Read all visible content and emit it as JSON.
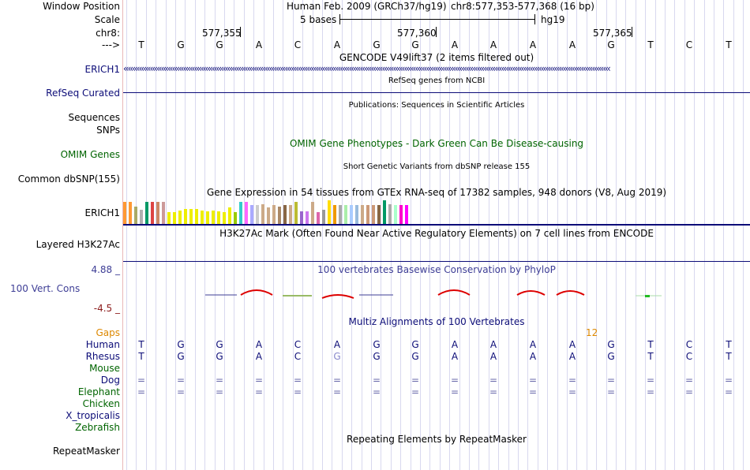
{
  "header": {
    "window_position_label": "Window Position",
    "scale_label": "Scale",
    "chr_label": "chr8:",
    "arrow_label": "--->",
    "assembly": "Human Feb. 2009 (GRCh37/hg19)",
    "position": "chr8:577,353-577,368 (16 bp)",
    "scale_text": "5 bases",
    "db": "hg19",
    "ticks": [
      "577,355",
      "577,360",
      "577,365"
    ]
  },
  "sequence": [
    "T",
    "G",
    "G",
    "A",
    "C",
    "A",
    "G",
    "G",
    "A",
    "A",
    "A",
    "A",
    "G",
    "T",
    "C",
    "T"
  ],
  "tracks": {
    "gencode": {
      "title": "GENCODE V49lift37 (2 items filtered out)",
      "label": "ERICH1",
      "color": "#0c0c78"
    },
    "refseq": {
      "title": "RefSeq genes from NCBI",
      "label": "RefSeq Curated",
      "color": "#0c0c78"
    },
    "publications": {
      "title": "Publications: Sequences in Scientific Articles",
      "label1": "Sequences",
      "label2": "SNPs"
    },
    "omim": {
      "title": "OMIM Gene Phenotypes - Dark Green Can Be Disease-causing",
      "label": "OMIM Genes",
      "color": "#006400"
    },
    "dbsnp": {
      "title": "Short Genetic Variants from dbSNP release 155",
      "label": "Common dbSNP(155)"
    },
    "gtex": {
      "title": "Gene Expression in 54 tissues from GTEx RNA-seq of 17382 samples, 948 donors (V8, Aug 2019)",
      "label": "ERICH1",
      "bars": [
        {
          "value": 0.93,
          "color": "#ff9933"
        },
        {
          "value": 0.93,
          "color": "#ff9933"
        },
        {
          "value": 0.73,
          "color": "#aaaa66"
        },
        {
          "value": 0.6,
          "color": "#b0b0b0"
        },
        {
          "value": 0.93,
          "color": "#009966"
        },
        {
          "value": 0.93,
          "color": "#dd4444"
        },
        {
          "value": 0.93,
          "color": "#cc8866"
        },
        {
          "value": 0.93,
          "color": "#cc9999"
        },
        {
          "value": 0.5,
          "color": "#eeee00"
        },
        {
          "value": 0.5,
          "color": "#eeee00"
        },
        {
          "value": 0.57,
          "color": "#eeee00"
        },
        {
          "value": 0.63,
          "color": "#eeee00"
        },
        {
          "value": 0.63,
          "color": "#eeee00"
        },
        {
          "value": 0.63,
          "color": "#eeee00"
        },
        {
          "value": 0.57,
          "color": "#eeee00"
        },
        {
          "value": 0.53,
          "color": "#eeee00"
        },
        {
          "value": 0.57,
          "color": "#eeee00"
        },
        {
          "value": 0.53,
          "color": "#eeee00"
        },
        {
          "value": 0.5,
          "color": "#eeee00"
        },
        {
          "value": 0.7,
          "color": "#eeee00"
        },
        {
          "value": 0.5,
          "color": "#99cc00"
        },
        {
          "value": 0.93,
          "color": "#33cccc"
        },
        {
          "value": 0.93,
          "color": "#ff66ff"
        },
        {
          "value": 0.8,
          "color": "#aaaaff"
        },
        {
          "value": 0.8,
          "color": "#cccccc"
        },
        {
          "value": 0.83,
          "color": "#ccaa88"
        },
        {
          "value": 0.7,
          "color": "#ccaa88"
        },
        {
          "value": 0.8,
          "color": "#ccaa88"
        },
        {
          "value": 0.73,
          "color": "#aa8866"
        },
        {
          "value": 0.8,
          "color": "#886644"
        },
        {
          "value": 0.8,
          "color": "#ccaa88"
        },
        {
          "value": 0.93,
          "color": "#bbbb33"
        },
        {
          "value": 0.53,
          "color": "#9966cc"
        },
        {
          "value": 0.53,
          "color": "#cc77ee"
        },
        {
          "value": 0.93,
          "color": "#ccaa88"
        },
        {
          "value": 0.5,
          "color": "#dd66aa"
        },
        {
          "value": 0.6,
          "color": "#999999"
        },
        {
          "value": 1.0,
          "color": "#ffdd00"
        },
        {
          "value": 0.8,
          "color": "#ee9900"
        },
        {
          "value": 0.8,
          "color": "#aaaaaa"
        },
        {
          "value": 0.8,
          "color": "#aaeeaa"
        },
        {
          "value": 0.8,
          "color": "#aaccff"
        },
        {
          "value": 0.8,
          "color": "#99bbdd"
        },
        {
          "value": 0.8,
          "color": "#ccaa88"
        },
        {
          "value": 0.8,
          "color": "#cc9977"
        },
        {
          "value": 0.8,
          "color": "#cc9977"
        },
        {
          "value": 0.8,
          "color": "#886644"
        },
        {
          "value": 1.0,
          "color": "#009966"
        },
        {
          "value": 0.83,
          "color": "#aaaaaa"
        },
        {
          "value": 0.8,
          "color": "#aaffcc"
        },
        {
          "value": 0.8,
          "color": "#ff00cc"
        },
        {
          "value": 0.8,
          "color": "#ff00ff"
        }
      ]
    },
    "h3k27ac": {
      "title": "H3K27Ac Mark (Often Found Near Active Regulatory Elements) on 7 cell lines from ENCODE",
      "label": "Layered H3K27Ac"
    },
    "phylop": {
      "title": "100 vertebrates Basewise Conservation by PhyloP",
      "label": "100 Vert. Cons",
      "max_label": "4.88 _",
      "min_label": "-4.5 _",
      "label_color": "#3e3e96",
      "max_color": "#3e3e96",
      "min_color": "#8b1a1a"
    },
    "multiz": {
      "title": "Multiz Alignments of 100 Vertebrates",
      "gaps_label": "Gaps",
      "gaps_value": "12",
      "gaps_color": "#dd8800",
      "species": [
        {
          "name": "Human",
          "color": "#0c0c78",
          "row": [
            "T",
            "G",
            "G",
            "A",
            "C",
            "A",
            "G",
            "G",
            "A",
            "A",
            "A",
            "A",
            "G",
            "T",
            "C",
            "T"
          ]
        },
        {
          "name": "Rhesus",
          "color": "#0c0c78",
          "row": [
            "T",
            "G",
            "G",
            "A",
            "C",
            "G",
            "G",
            "G",
            "A",
            "A",
            "A",
            "A",
            "G",
            "T",
            "C",
            "T"
          ]
        },
        {
          "name": "Mouse",
          "color": "#006400",
          "row": []
        },
        {
          "name": "Dog",
          "color": "#0c0c78",
          "row": [
            "=",
            "=",
            "=",
            "=",
            "=",
            "=",
            "=",
            "=",
            "=",
            "=",
            "=",
            "=",
            "=",
            "=",
            "=",
            "="
          ]
        },
        {
          "name": "Elephant",
          "color": "#006400",
          "row": [
            "=",
            "=",
            "=",
            "=",
            "=",
            "=",
            "=",
            "=",
            "=",
            "=",
            "=",
            "=",
            "=",
            "=",
            "=",
            "="
          ]
        },
        {
          "name": "Chicken",
          "color": "#006400",
          "row": []
        },
        {
          "name": "X_tropicalis",
          "color": "#0c0c78",
          "row": []
        },
        {
          "name": "Zebrafish",
          "color": "#006400",
          "row": []
        }
      ]
    },
    "repeatmasker": {
      "title": "Repeating Elements by RepeatMasker",
      "label": "RepeatMasker"
    }
  }
}
